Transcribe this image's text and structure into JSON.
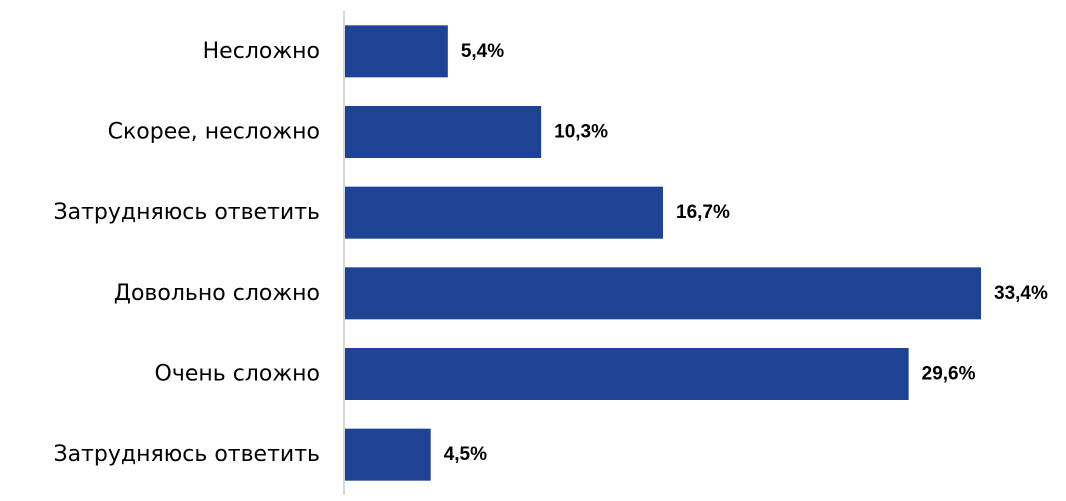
{
  "chart_data": {
    "type": "bar",
    "orientation": "horizontal",
    "categories": [
      "Несложно",
      "Скорее, несложно",
      "Затрудняюсь ответить",
      "Довольно сложно",
      "Очень сложно",
      "Затрудняюсь ответить"
    ],
    "values": [
      5.4,
      10.3,
      16.7,
      33.4,
      29.6,
      4.5
    ],
    "value_labels": [
      "5,4%",
      "10,3%",
      "16,7%",
      "33,4%",
      "29,6%",
      "4,5%"
    ],
    "title": "",
    "xlabel": "",
    "ylabel": "",
    "xlim": [
      0,
      33.4
    ],
    "grid": false,
    "legend": "none",
    "bar_color": "#1f4394",
    "axis_color": "#c8c8c8"
  }
}
